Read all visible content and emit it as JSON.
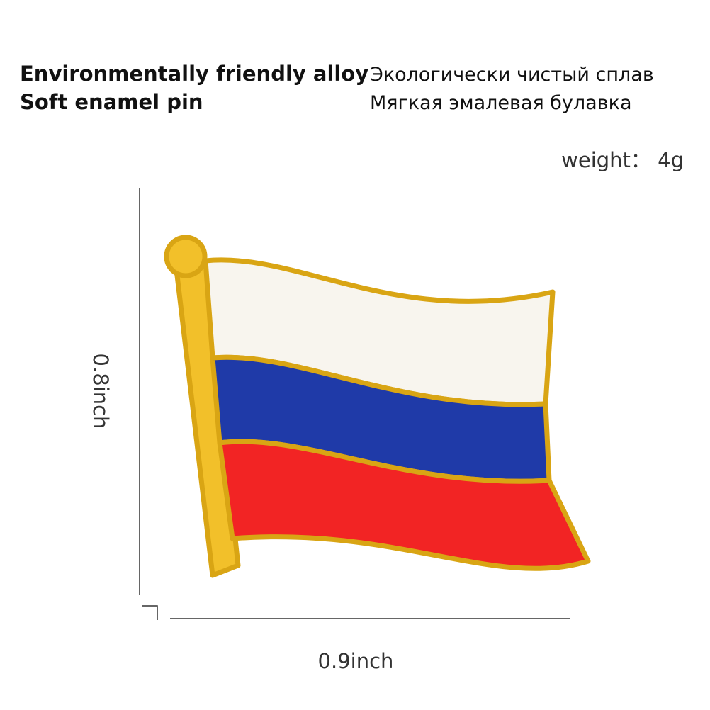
{
  "header": {
    "english": [
      "Environmentally friendly alloy",
      "Soft enamel pin"
    ],
    "russian": [
      "Экологически чистый сплав",
      "Мягкая эмалевая булавка"
    ]
  },
  "weight": "weight： 4g",
  "dimensions": {
    "height": "0.8inch",
    "width": "0.9inch"
  }
}
